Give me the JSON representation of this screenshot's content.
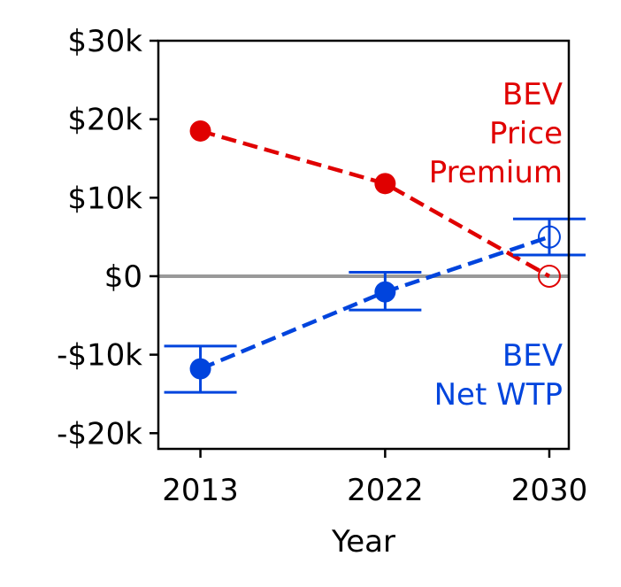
{
  "chart_data": {
    "type": "line",
    "title": "",
    "xlabel": "Year",
    "ylabel": "",
    "x": [
      2013,
      2022,
      2030
    ],
    "xticks": [
      {
        "value": 2013,
        "label": "2013"
      },
      {
        "value": 2022,
        "label": "2022"
      },
      {
        "value": 2030,
        "label": "2030"
      }
    ],
    "xlim": [
      2010.95,
      2030.95
    ],
    "yticks": [
      {
        "value": 30000,
        "label": "$30k"
      },
      {
        "value": 20000,
        "label": "$20k"
      },
      {
        "value": 10000,
        "label": "$10k"
      },
      {
        "value": 0,
        "label": "$0"
      },
      {
        "value": -10000,
        "label": "-$10k"
      },
      {
        "value": -20000,
        "label": "-$20k"
      }
    ],
    "ylim": [
      -22000,
      30000
    ],
    "reference_line": {
      "y": 0,
      "color": "#999999"
    },
    "grid": false,
    "series": [
      {
        "label_lines": [
          "BEV",
          "Price",
          "Premium"
        ],
        "color": "#e00000",
        "linestyle": "dashed",
        "values": [
          18500,
          11800,
          0
        ],
        "hollow": [
          false,
          false,
          true
        ]
      },
      {
        "label_lines": [
          "BEV",
          "Net WTP"
        ],
        "color": "#0044dd",
        "linestyle": "dashed",
        "values": [
          -11800,
          -2000,
          5000
        ],
        "error_low": [
          -14800,
          -4300,
          2700
        ],
        "error_high": [
          -8900,
          500,
          7300
        ],
        "hollow": [
          false,
          false,
          true
        ]
      }
    ]
  }
}
